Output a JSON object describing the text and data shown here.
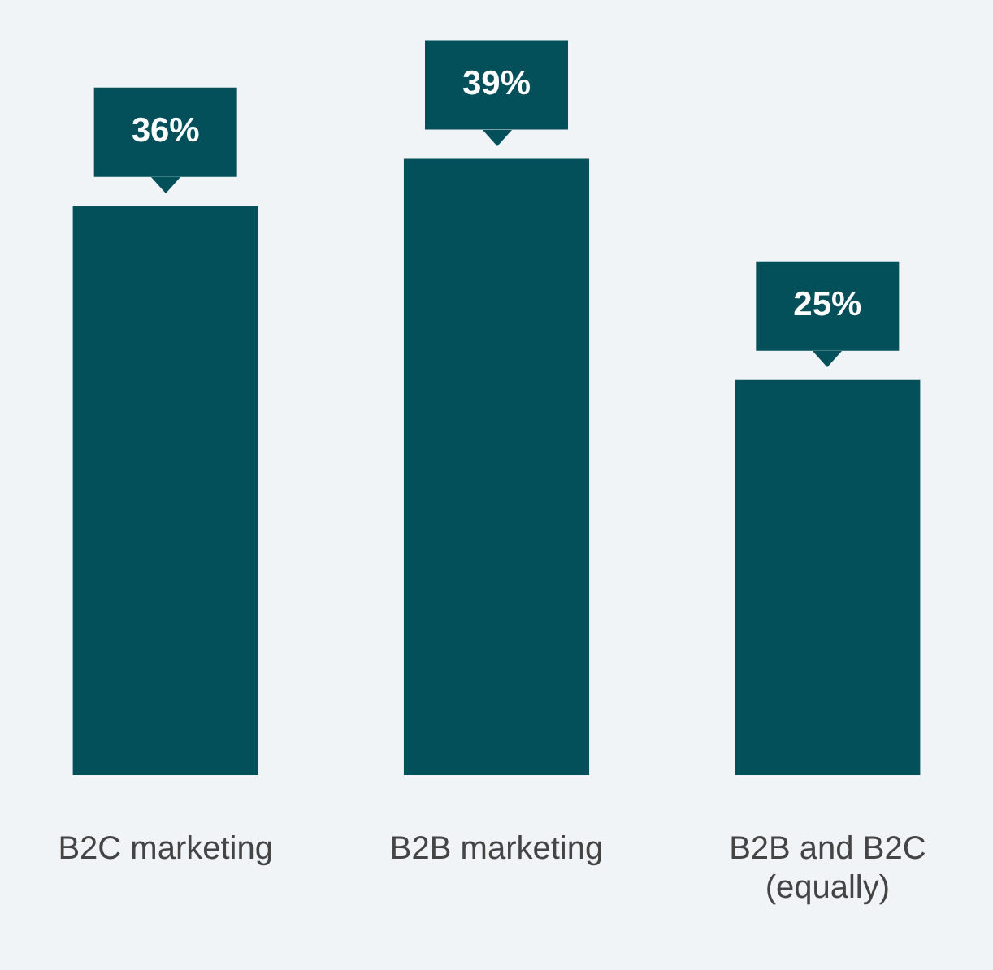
{
  "chart_data": {
    "type": "bar",
    "categories": [
      "B2C marketing",
      "B2B marketing",
      "B2B and B2C (equally)"
    ],
    "values": [
      36,
      39,
      25
    ],
    "color": "#03505a",
    "data_labels": true,
    "value_labels": [
      "36%",
      "39%",
      "25%"
    ],
    "grid": false,
    "legend": false
  }
}
